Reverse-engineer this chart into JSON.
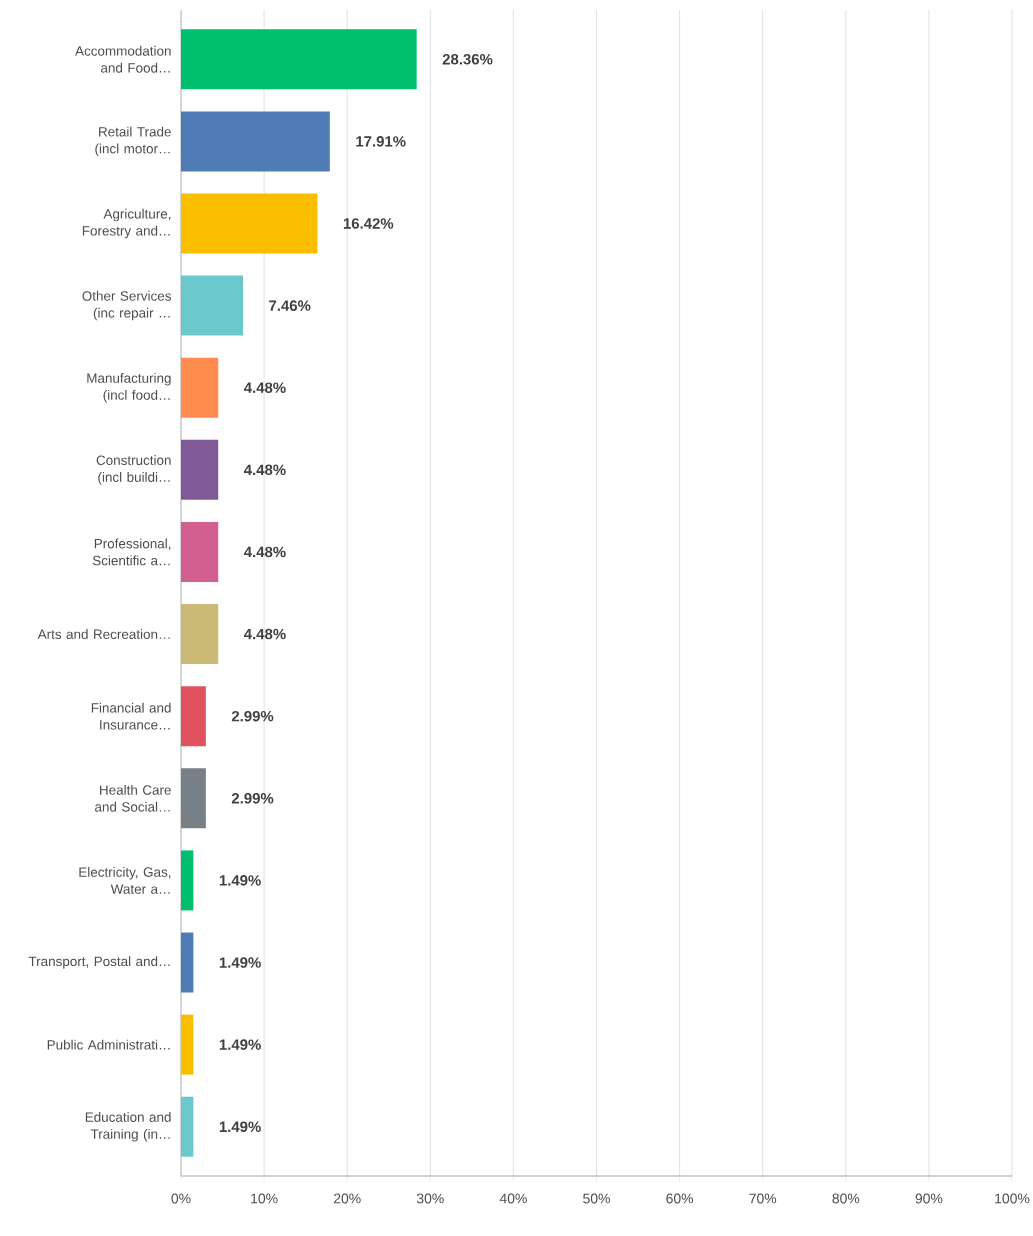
{
  "chart_data": {
    "type": "bar",
    "orientation": "horizontal",
    "categories": [
      "Accommodation and Food…",
      "Retail Trade (incl motor…",
      "Agriculture, Forestry and…",
      "Other Services (inc repair …",
      "Manufacturing (incl food…",
      "Construction (incl buildi…",
      "Professional, Scientific a…",
      "Arts and Recreation…",
      "Financial and Insurance…",
      "Health Care and Social…",
      "Electricity, Gas, Water a…",
      "Transport, Postal and…",
      "Public Administrati…",
      "Education and Training (in…"
    ],
    "values": [
      28.36,
      17.91,
      16.42,
      7.46,
      4.48,
      4.48,
      4.48,
      4.48,
      2.99,
      2.99,
      1.49,
      1.49,
      1.49,
      1.49
    ],
    "value_labels": [
      "28.36%",
      "17.91%",
      "16.42%",
      "7.46%",
      "4.48%",
      "4.48%",
      "4.48%",
      "4.48%",
      "2.99%",
      "2.99%",
      "1.49%",
      "1.49%",
      "1.49%",
      "1.49%"
    ],
    "colors": [
      "#00bf6f",
      "#507cb6",
      "#f9be00",
      "#6bc8cd",
      "#ff8b4f",
      "#7f5a96",
      "#d25f90",
      "#cbb976",
      "#e05260",
      "#768086",
      "#00bf6f",
      "#507cb6",
      "#f9be00",
      "#6bc8cd"
    ],
    "xlim": [
      0,
      100
    ],
    "xticks": [
      {
        "value": 0,
        "label": "0%"
      },
      {
        "value": 10,
        "label": "10%"
      },
      {
        "value": 20,
        "label": "20%"
      },
      {
        "value": 30,
        "label": "30%"
      },
      {
        "value": 40,
        "label": "40%"
      },
      {
        "value": 50,
        "label": "50%"
      },
      {
        "value": 60,
        "label": "60%"
      },
      {
        "value": 70,
        "label": "70%"
      },
      {
        "value": 80,
        "label": "80%"
      },
      {
        "value": 90,
        "label": "90%"
      },
      {
        "value": 100,
        "label": "100%"
      }
    ],
    "grid": "x"
  }
}
